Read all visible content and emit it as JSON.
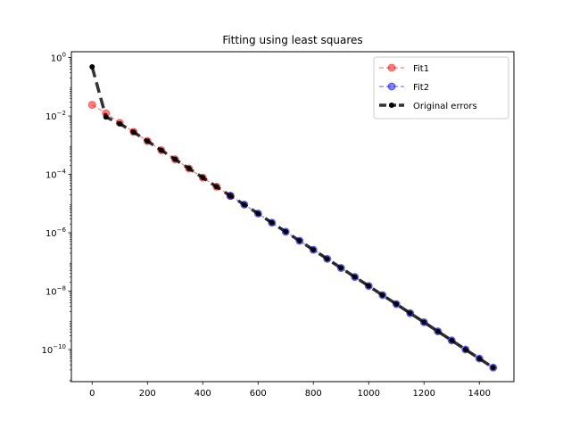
{
  "chart_data": {
    "type": "line",
    "title": "Fitting using least squares",
    "xlabel": "",
    "ylabel": "",
    "xlim": [
      -75,
      1525
    ],
    "ylim_log10": [
      -11.1,
      0.2
    ],
    "y_scale": "log",
    "grid": false,
    "legend_placement": "top-right",
    "x_ticks": [
      0,
      200,
      400,
      600,
      800,
      1000,
      1200,
      1400
    ],
    "x_tick_labels": [
      "0",
      "200",
      "400",
      "600",
      "800",
      "1000",
      "1200",
      "1400"
    ],
    "y_ticks_log10": [
      0,
      -2,
      -4,
      -6,
      -8,
      -10
    ],
    "y_tick_labels": [
      {
        "base": "10",
        "exp": "0"
      },
      {
        "base": "10",
        "exp": "−2"
      },
      {
        "base": "10",
        "exp": "−4"
      },
      {
        "base": "10",
        "exp": "−6"
      },
      {
        "base": "10",
        "exp": "−8"
      },
      {
        "base": "10",
        "exp": "−10"
      }
    ],
    "series": [
      {
        "name": "Fit1",
        "color": "#ff0000",
        "style": "dashed-circle",
        "x": [
          0,
          50,
          100,
          150,
          200,
          250,
          300,
          350,
          400,
          450,
          500
        ],
        "y": [
          0.024,
          0.0123,
          0.0058,
          0.00285,
          0.00138,
          0.00067,
          0.000327,
          0.000159,
          7.74e-05,
          3.76e-05,
          1.83e-05
        ]
      },
      {
        "name": "Fit2",
        "color": "#0000ff",
        "style": "dashed-circle",
        "x": [
          500,
          550,
          600,
          650,
          700,
          750,
          800,
          850,
          900,
          950,
          1000,
          1050,
          1100,
          1150,
          1200,
          1250,
          1300,
          1350,
          1400,
          1450
        ],
        "y": [
          1.83e-05,
          9.2e-06,
          4.55e-06,
          2.2e-06,
          1.08e-06,
          5.3e-07,
          2.6e-07,
          1.27e-07,
          6.2e-08,
          3.05e-08,
          1.5e-08,
          7.3e-09,
          3.6e-09,
          1.75e-09,
          8.6e-10,
          4.2e-10,
          2.05e-10,
          1e-10,
          4.9e-11,
          2.4e-11
        ]
      },
      {
        "name": "Original errors",
        "color": "#000000",
        "style": "thick-dashed-dot",
        "x": [
          0,
          50,
          100,
          150,
          200,
          250,
          300,
          350,
          400,
          450,
          500,
          550,
          600,
          650,
          700,
          750,
          800,
          850,
          900,
          950,
          1000,
          1050,
          1100,
          1150,
          1200,
          1250,
          1300,
          1350,
          1400,
          1450
        ],
        "y": [
          0.48,
          0.0092,
          0.0054,
          0.0028,
          0.00138,
          0.00067,
          0.000327,
          0.000159,
          7.74e-05,
          3.76e-05,
          1.83e-05,
          9.2e-06,
          4.55e-06,
          2.2e-06,
          1.08e-06,
          5.3e-07,
          2.6e-07,
          1.27e-07,
          6.2e-08,
          3.05e-08,
          1.5e-08,
          7.3e-09,
          3.6e-09,
          1.75e-09,
          8.6e-10,
          4.2e-10,
          2.05e-10,
          1e-10,
          4.9e-11,
          2.4e-11
        ]
      }
    ]
  }
}
